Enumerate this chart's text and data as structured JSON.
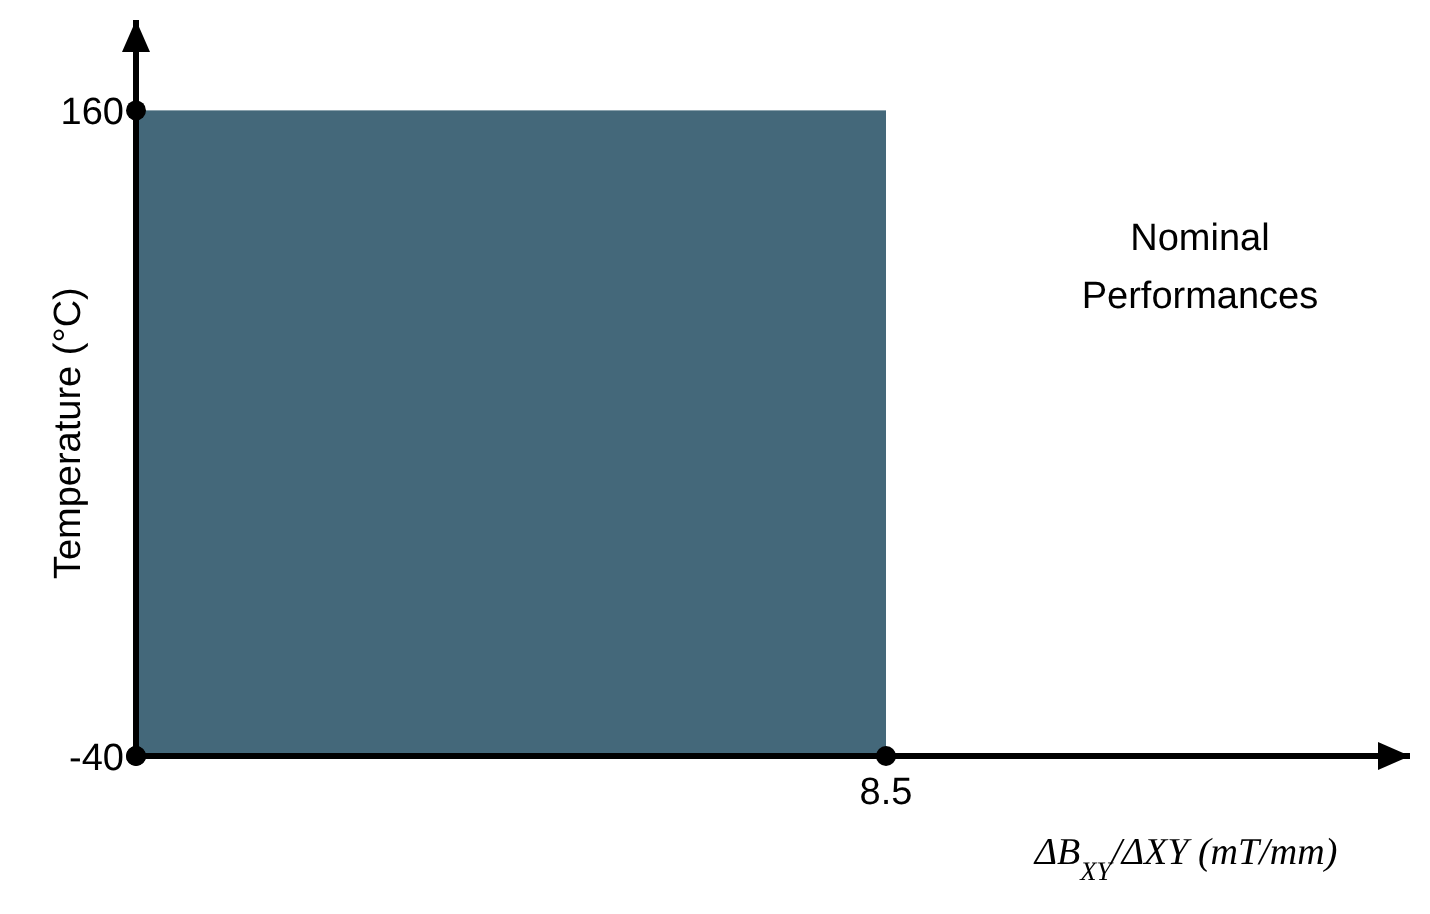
{
  "chart_data": {
    "type": "bar",
    "xlabel": "ΔB$_{XY}$/ΔXY (mT/mm)",
    "ylabel": "Temperature (°C)",
    "categories": [
      null
    ],
    "series": [
      {
        "color": "#44687a",
        "values": [
          200
        ],
        "base": [
          -40
        ]
      }
    ],
    "ylim": [
      -40,
      188
    ],
    "yticks": [
      -40,
      160
    ],
    "annotations": [
      "8.5",
      "Nominal Performances"
    ],
    "grid": false
  }
}
